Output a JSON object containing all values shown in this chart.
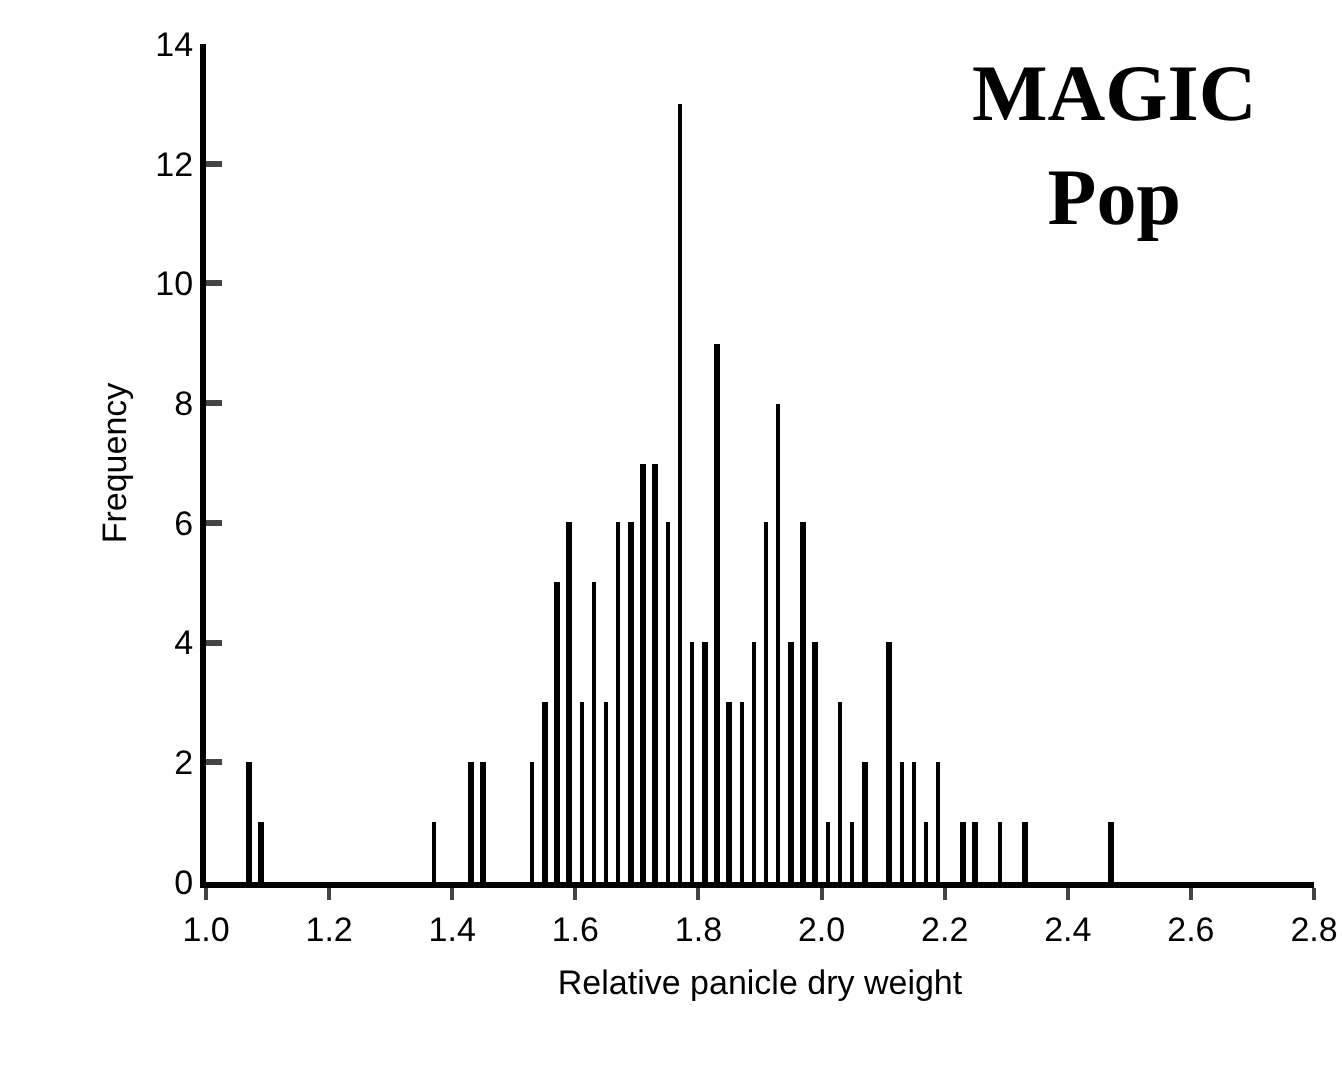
{
  "chart_data": {
    "type": "histogram",
    "title": "MAGIC Pop",
    "xlabel": "Relative panicle dry weight",
    "ylabel": "Frequency",
    "bins": [
      1.0,
      1.02,
      1.04,
      1.06,
      1.08,
      1.1,
      1.12,
      1.14,
      1.16,
      1.18,
      1.2,
      1.22,
      1.24,
      1.26,
      1.28,
      1.3,
      1.32,
      1.34,
      1.36,
      1.38,
      1.4,
      1.42,
      1.44,
      1.46,
      1.48,
      1.5,
      1.52,
      1.54,
      1.56,
      1.58,
      1.6,
      1.62,
      1.64,
      1.66,
      1.68,
      1.7,
      1.72,
      1.74,
      1.76,
      1.78,
      1.8,
      1.82,
      1.84,
      1.86,
      1.88,
      1.9,
      1.92,
      1.94,
      1.96,
      1.98,
      2.0,
      2.02,
      2.04,
      2.06,
      2.08,
      2.1,
      2.12,
      2.14,
      2.16,
      2.18,
      2.2,
      2.22,
      2.24,
      2.26,
      2.28,
      2.3,
      2.32,
      2.34,
      2.36,
      2.38,
      2.4,
      2.42,
      2.44,
      2.46,
      2.48,
      2.5,
      2.52,
      2.54,
      2.56,
      2.58,
      2.6,
      2.62,
      2.64,
      2.66,
      2.68,
      2.7,
      2.72,
      2.74,
      2.76,
      2.78,
      2.8
    ],
    "values": [
      0,
      0,
      0,
      2,
      1,
      0,
      0,
      0,
      0,
      0,
      0,
      0,
      0,
      0,
      0,
      0,
      0,
      0,
      1,
      0,
      0,
      2,
      2,
      0,
      0,
      0,
      2,
      3,
      5,
      6,
      3,
      5,
      3,
      6,
      6,
      7,
      7,
      6,
      13,
      4,
      4,
      9,
      3,
      3,
      4,
      6,
      8,
      4,
      6,
      4,
      1,
      3,
      1,
      2,
      0,
      4,
      2,
      2,
      1,
      2,
      0,
      1,
      1,
      0,
      1,
      0,
      1,
      0,
      0,
      0,
      0,
      0,
      0,
      1,
      0,
      0,
      0,
      0,
      0,
      0,
      0,
      0,
      0,
      0,
      0,
      0,
      0,
      0,
      0,
      0
    ],
    "color": "#000000",
    "xlim": [
      1.0,
      2.8
    ],
    "xticks": [
      {
        "value": 1.0,
        "label": "1.0"
      },
      {
        "value": 1.2,
        "label": "1.2"
      },
      {
        "value": 1.4,
        "label": "1.4"
      },
      {
        "value": 1.6,
        "label": "1.6"
      },
      {
        "value": 1.8,
        "label": "1.8"
      },
      {
        "value": 2.0,
        "label": "2.0"
      },
      {
        "value": 2.2,
        "label": "2.2"
      },
      {
        "value": 2.4,
        "label": "2.4"
      },
      {
        "value": 2.6,
        "label": "2.6"
      },
      {
        "value": 2.8,
        "label": "2.8"
      }
    ],
    "ylim": [
      0,
      14
    ],
    "yticks": [
      0,
      2,
      4,
      6,
      8,
      10,
      12,
      14
    ],
    "grid": false
  }
}
